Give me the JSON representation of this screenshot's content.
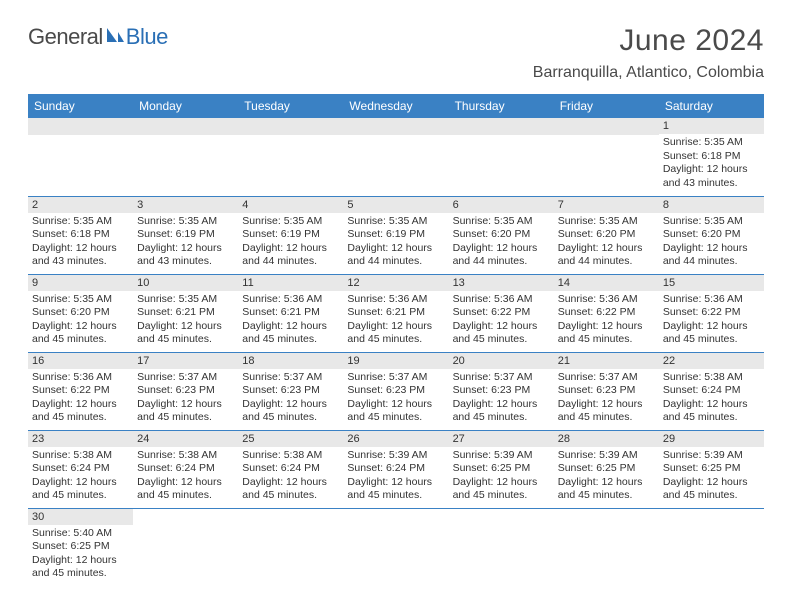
{
  "logo": {
    "general": "General",
    "blue": "Blue"
  },
  "title": "June 2024",
  "location": "Barranquilla, Atlantico, Colombia",
  "colors": {
    "header_bg": "#3a81c4",
    "header_text": "#ffffff",
    "daynum_bg": "#e8e8e8",
    "border": "#3a81c4",
    "body_text": "#333333",
    "logo_blue": "#2a6fb5"
  },
  "day_headers": [
    "Sunday",
    "Monday",
    "Tuesday",
    "Wednesday",
    "Thursday",
    "Friday",
    "Saturday"
  ],
  "weeks": [
    [
      null,
      null,
      null,
      null,
      null,
      null,
      {
        "n": "1",
        "sr": "Sunrise: 5:35 AM",
        "ss": "Sunset: 6:18 PM",
        "dl1": "Daylight: 12 hours",
        "dl2": "and 43 minutes."
      }
    ],
    [
      {
        "n": "2",
        "sr": "Sunrise: 5:35 AM",
        "ss": "Sunset: 6:18 PM",
        "dl1": "Daylight: 12 hours",
        "dl2": "and 43 minutes."
      },
      {
        "n": "3",
        "sr": "Sunrise: 5:35 AM",
        "ss": "Sunset: 6:19 PM",
        "dl1": "Daylight: 12 hours",
        "dl2": "and 43 minutes."
      },
      {
        "n": "4",
        "sr": "Sunrise: 5:35 AM",
        "ss": "Sunset: 6:19 PM",
        "dl1": "Daylight: 12 hours",
        "dl2": "and 44 minutes."
      },
      {
        "n": "5",
        "sr": "Sunrise: 5:35 AM",
        "ss": "Sunset: 6:19 PM",
        "dl1": "Daylight: 12 hours",
        "dl2": "and 44 minutes."
      },
      {
        "n": "6",
        "sr": "Sunrise: 5:35 AM",
        "ss": "Sunset: 6:20 PM",
        "dl1": "Daylight: 12 hours",
        "dl2": "and 44 minutes."
      },
      {
        "n": "7",
        "sr": "Sunrise: 5:35 AM",
        "ss": "Sunset: 6:20 PM",
        "dl1": "Daylight: 12 hours",
        "dl2": "and 44 minutes."
      },
      {
        "n": "8",
        "sr": "Sunrise: 5:35 AM",
        "ss": "Sunset: 6:20 PM",
        "dl1": "Daylight: 12 hours",
        "dl2": "and 44 minutes."
      }
    ],
    [
      {
        "n": "9",
        "sr": "Sunrise: 5:35 AM",
        "ss": "Sunset: 6:20 PM",
        "dl1": "Daylight: 12 hours",
        "dl2": "and 45 minutes."
      },
      {
        "n": "10",
        "sr": "Sunrise: 5:35 AM",
        "ss": "Sunset: 6:21 PM",
        "dl1": "Daylight: 12 hours",
        "dl2": "and 45 minutes."
      },
      {
        "n": "11",
        "sr": "Sunrise: 5:36 AM",
        "ss": "Sunset: 6:21 PM",
        "dl1": "Daylight: 12 hours",
        "dl2": "and 45 minutes."
      },
      {
        "n": "12",
        "sr": "Sunrise: 5:36 AM",
        "ss": "Sunset: 6:21 PM",
        "dl1": "Daylight: 12 hours",
        "dl2": "and 45 minutes."
      },
      {
        "n": "13",
        "sr": "Sunrise: 5:36 AM",
        "ss": "Sunset: 6:22 PM",
        "dl1": "Daylight: 12 hours",
        "dl2": "and 45 minutes."
      },
      {
        "n": "14",
        "sr": "Sunrise: 5:36 AM",
        "ss": "Sunset: 6:22 PM",
        "dl1": "Daylight: 12 hours",
        "dl2": "and 45 minutes."
      },
      {
        "n": "15",
        "sr": "Sunrise: 5:36 AM",
        "ss": "Sunset: 6:22 PM",
        "dl1": "Daylight: 12 hours",
        "dl2": "and 45 minutes."
      }
    ],
    [
      {
        "n": "16",
        "sr": "Sunrise: 5:36 AM",
        "ss": "Sunset: 6:22 PM",
        "dl1": "Daylight: 12 hours",
        "dl2": "and 45 minutes."
      },
      {
        "n": "17",
        "sr": "Sunrise: 5:37 AM",
        "ss": "Sunset: 6:23 PM",
        "dl1": "Daylight: 12 hours",
        "dl2": "and 45 minutes."
      },
      {
        "n": "18",
        "sr": "Sunrise: 5:37 AM",
        "ss": "Sunset: 6:23 PM",
        "dl1": "Daylight: 12 hours",
        "dl2": "and 45 minutes."
      },
      {
        "n": "19",
        "sr": "Sunrise: 5:37 AM",
        "ss": "Sunset: 6:23 PM",
        "dl1": "Daylight: 12 hours",
        "dl2": "and 45 minutes."
      },
      {
        "n": "20",
        "sr": "Sunrise: 5:37 AM",
        "ss": "Sunset: 6:23 PM",
        "dl1": "Daylight: 12 hours",
        "dl2": "and 45 minutes."
      },
      {
        "n": "21",
        "sr": "Sunrise: 5:37 AM",
        "ss": "Sunset: 6:23 PM",
        "dl1": "Daylight: 12 hours",
        "dl2": "and 45 minutes."
      },
      {
        "n": "22",
        "sr": "Sunrise: 5:38 AM",
        "ss": "Sunset: 6:24 PM",
        "dl1": "Daylight: 12 hours",
        "dl2": "and 45 minutes."
      }
    ],
    [
      {
        "n": "23",
        "sr": "Sunrise: 5:38 AM",
        "ss": "Sunset: 6:24 PM",
        "dl1": "Daylight: 12 hours",
        "dl2": "and 45 minutes."
      },
      {
        "n": "24",
        "sr": "Sunrise: 5:38 AM",
        "ss": "Sunset: 6:24 PM",
        "dl1": "Daylight: 12 hours",
        "dl2": "and 45 minutes."
      },
      {
        "n": "25",
        "sr": "Sunrise: 5:38 AM",
        "ss": "Sunset: 6:24 PM",
        "dl1": "Daylight: 12 hours",
        "dl2": "and 45 minutes."
      },
      {
        "n": "26",
        "sr": "Sunrise: 5:39 AM",
        "ss": "Sunset: 6:24 PM",
        "dl1": "Daylight: 12 hours",
        "dl2": "and 45 minutes."
      },
      {
        "n": "27",
        "sr": "Sunrise: 5:39 AM",
        "ss": "Sunset: 6:25 PM",
        "dl1": "Daylight: 12 hours",
        "dl2": "and 45 minutes."
      },
      {
        "n": "28",
        "sr": "Sunrise: 5:39 AM",
        "ss": "Sunset: 6:25 PM",
        "dl1": "Daylight: 12 hours",
        "dl2": "and 45 minutes."
      },
      {
        "n": "29",
        "sr": "Sunrise: 5:39 AM",
        "ss": "Sunset: 6:25 PM",
        "dl1": "Daylight: 12 hours",
        "dl2": "and 45 minutes."
      }
    ],
    [
      {
        "n": "30",
        "sr": "Sunrise: 5:40 AM",
        "ss": "Sunset: 6:25 PM",
        "dl1": "Daylight: 12 hours",
        "dl2": "and 45 minutes."
      },
      null,
      null,
      null,
      null,
      null,
      null
    ]
  ]
}
